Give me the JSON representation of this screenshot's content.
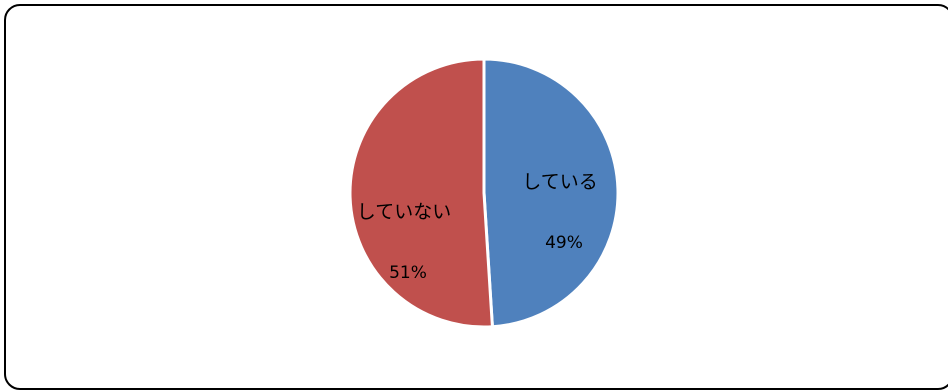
{
  "chart_data": {
    "type": "pie",
    "slices": [
      {
        "label": "している",
        "value": 49,
        "value_label": "49%",
        "color": "#4f81bd"
      },
      {
        "label": "していない",
        "value": 51,
        "value_label": "51%",
        "color": "#c0504d"
      }
    ],
    "start_angle": "top",
    "direction": "clockwise",
    "border_color": "#ffffff"
  }
}
